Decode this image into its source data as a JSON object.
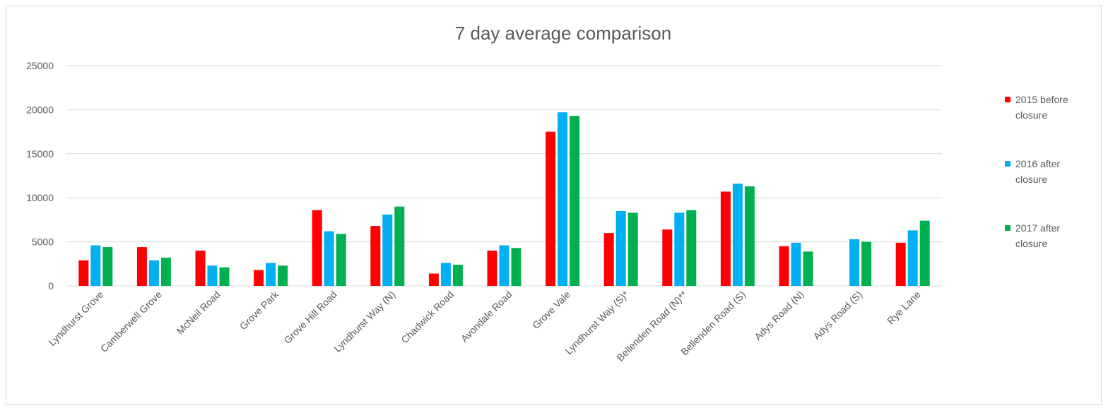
{
  "chart_data": {
    "type": "bar",
    "title": "7 day average comparison",
    "xlabel": "",
    "ylabel": "",
    "ylim": [
      0,
      25000
    ],
    "yticks": [
      0,
      5000,
      10000,
      15000,
      20000,
      25000
    ],
    "grid": true,
    "legend_position": "right",
    "categories": [
      "Lyndhurst Grove",
      "Camberwell Grove",
      "McNeil Road",
      "Grove Park",
      "Grove Hill Road",
      "Lyndhurst Way (N)",
      "Chadwick Road",
      "Avondale Road",
      "Grove Vale",
      "Lyndhurst Way (S)*",
      "Bellenden Road (N)**",
      "Bellenden Road (S)",
      "Adys Road (N)",
      "Adys Road (S)",
      "Rye Lane"
    ],
    "series": [
      {
        "name": "2015 before closure",
        "legend_lines": [
          "2015 before",
          "closure"
        ],
        "color": "#ff0000",
        "values": [
          2900,
          4400,
          4000,
          1800,
          8600,
          6800,
          1400,
          4000,
          17500,
          6000,
          6400,
          10700,
          4500,
          null,
          4900
        ]
      },
      {
        "name": "2016 after closure",
        "legend_lines": [
          "2016 after",
          "closure"
        ],
        "color": "#00b0f0",
        "values": [
          4600,
          2900,
          2300,
          2600,
          6200,
          8100,
          2600,
          4600,
          19700,
          8500,
          8300,
          11600,
          4900,
          5300,
          6300
        ]
      },
      {
        "name": "2017 after closure",
        "legend_lines": [
          "2017 after",
          "closure"
        ],
        "color": "#00b050",
        "values": [
          4400,
          3200,
          2100,
          2300,
          5900,
          9000,
          2400,
          4300,
          19300,
          8300,
          8600,
          11300,
          3900,
          5000,
          7400
        ]
      }
    ]
  }
}
